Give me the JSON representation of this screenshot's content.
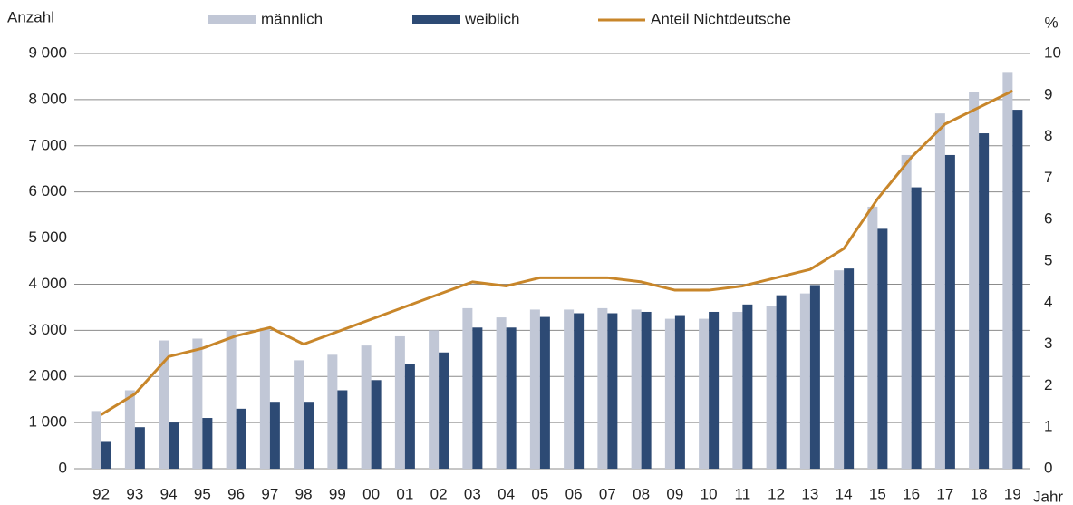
{
  "chart_data": {
    "type": "bar-line",
    "y_label": "Anzahl",
    "y2_label": "%",
    "x_label": "Jahr",
    "categories": [
      "92",
      "93",
      "94",
      "95",
      "96",
      "97",
      "98",
      "99",
      "00",
      "01",
      "02",
      "03",
      "04",
      "05",
      "06",
      "07",
      "08",
      "09",
      "10",
      "11",
      "12",
      "13",
      "14",
      "15",
      "16",
      "17",
      "18",
      "19"
    ],
    "series": [
      {
        "name": "männlich",
        "color": "#c1c7d6",
        "values": [
          1250,
          1700,
          2780,
          2820,
          3000,
          3050,
          2350,
          2470,
          2670,
          2870,
          3000,
          3480,
          3280,
          3450,
          3450,
          3480,
          3450,
          3250,
          3250,
          3400,
          3530,
          3800,
          4300,
          5680,
          6800,
          7700,
          8170,
          8600
        ]
      },
      {
        "name": "weiblich",
        "color": "#2d4a74",
        "values": [
          600,
          900,
          1000,
          1100,
          1300,
          1450,
          1450,
          1700,
          1920,
          2270,
          2520,
          3060,
          3060,
          3290,
          3370,
          3370,
          3400,
          3330,
          3400,
          3560,
          3760,
          3980,
          4340,
          5200,
          6100,
          6800,
          7270,
          7780
        ]
      },
      {
        "name": "Anteil Nichtdeutsche",
        "color": "#c8862a",
        "axis": "y2",
        "values": [
          1.3,
          1.8,
          2.7,
          2.9,
          3.2,
          3.4,
          3.0,
          3.3,
          3.6,
          3.9,
          4.2,
          4.5,
          4.4,
          4.6,
          4.6,
          4.6,
          4.5,
          4.3,
          4.3,
          4.4,
          4.6,
          4.8,
          5.3,
          6.5,
          7.5,
          8.3,
          8.7,
          9.1
        ]
      }
    ],
    "ylim": [
      0,
      9000
    ],
    "yticks": [
      0,
      {
        "value": 1000,
        "label": "1 000"
      },
      {
        "value": 2000,
        "label": "2 000"
      },
      {
        "value": 3000,
        "label": "3 000"
      },
      {
        "value": 4000,
        "label": "4 000"
      },
      {
        "value": 5000,
        "label": "5 000"
      },
      {
        "value": 6000,
        "label": "6 000"
      },
      {
        "value": 7000,
        "label": "7 000"
      },
      {
        "value": 8000,
        "label": "8 000"
      },
      {
        "value": 9000,
        "label": "9 000"
      }
    ],
    "y2lim": [
      0,
      10
    ],
    "y2ticks": [
      0,
      1,
      2,
      3,
      4,
      5,
      6,
      7,
      8,
      9,
      10
    ],
    "grid": true,
    "legend": "top"
  }
}
